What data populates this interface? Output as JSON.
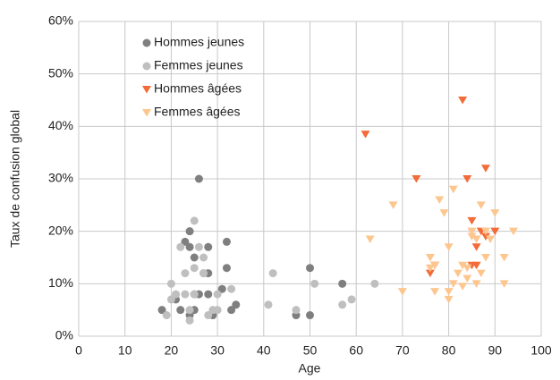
{
  "chart_data": {
    "type": "scatter",
    "x_label": "Age",
    "y_label": "Taux de confusion global",
    "xlim": [
      0,
      100
    ],
    "xticks": [
      0,
      10,
      20,
      30,
      40,
      50,
      60,
      70,
      80,
      90,
      100
    ],
    "ylim": [
      0,
      60
    ],
    "yticks": [
      {
        "value": 0,
        "label": "0%"
      },
      {
        "value": 10,
        "label": "10%"
      },
      {
        "value": 20,
        "label": "20%"
      },
      {
        "value": 30,
        "label": "30%"
      },
      {
        "value": 40,
        "label": "40%"
      },
      {
        "value": 50,
        "label": "50%"
      },
      {
        "value": 60,
        "label": "60%"
      }
    ],
    "grid": true,
    "legend": "top-left",
    "series": [
      {
        "name": "Hommes jeunes",
        "color": "#7f7f7f",
        "marker": "circle",
        "x": [
          18,
          21,
          22,
          23,
          24,
          24,
          24,
          25,
          25,
          25,
          26,
          26,
          27,
          28,
          28,
          28,
          29,
          31,
          32,
          32,
          33,
          34,
          47,
          50,
          50,
          57
        ],
        "values": [
          5,
          7,
          5,
          18,
          20,
          17,
          4,
          8,
          15,
          5,
          30,
          8,
          12,
          17,
          8,
          12,
          4,
          9,
          13,
          18,
          5,
          6,
          4,
          13,
          4,
          10
        ]
      },
      {
        "name": "Femmes jeunes",
        "color": "#bfbfbf",
        "marker": "circle",
        "x": [
          19,
          20,
          20,
          21,
          22,
          23,
          23,
          24,
          24,
          25,
          25,
          25,
          26,
          27,
          27,
          28,
          29,
          30,
          30,
          33,
          41,
          42,
          47,
          51,
          57,
          59,
          64
        ],
        "values": [
          4,
          10,
          7,
          8,
          17,
          12,
          8,
          3,
          5,
          22,
          13,
          8,
          17,
          15,
          12,
          4,
          5,
          5,
          8,
          9,
          6,
          12,
          5,
          10,
          6,
          7,
          10
        ]
      },
      {
        "name": "Hommes âgées",
        "color": "#f26b38",
        "marker": "triangle-down",
        "x": [
          62,
          73,
          76,
          77,
          83,
          84,
          85,
          85,
          86,
          86,
          87,
          88,
          88,
          90
        ],
        "values": [
          38.5,
          30,
          12,
          13.5,
          45,
          30,
          22,
          13.5,
          17,
          13.5,
          20,
          32,
          19,
          20
        ]
      },
      {
        "name": "Femmes âgées",
        "color": "#fdc68f",
        "marker": "triangle-down",
        "x": [
          63,
          68,
          70,
          76,
          76,
          77,
          77,
          78,
          79,
          80,
          80,
          80,
          81,
          81,
          82,
          83,
          83,
          84,
          84,
          85,
          85,
          86,
          86,
          87,
          87,
          88,
          88,
          89,
          90,
          92,
          92,
          94
        ],
        "values": [
          18.5,
          25,
          8.5,
          15,
          13,
          13.5,
          8.5,
          26,
          23.5,
          8.5,
          7,
          17,
          28,
          10,
          12,
          13.5,
          9.5,
          11,
          13,
          20,
          19,
          10,
          18.5,
          25,
          12,
          15,
          20,
          18.5,
          23.5,
          15,
          10,
          20
        ]
      }
    ]
  }
}
